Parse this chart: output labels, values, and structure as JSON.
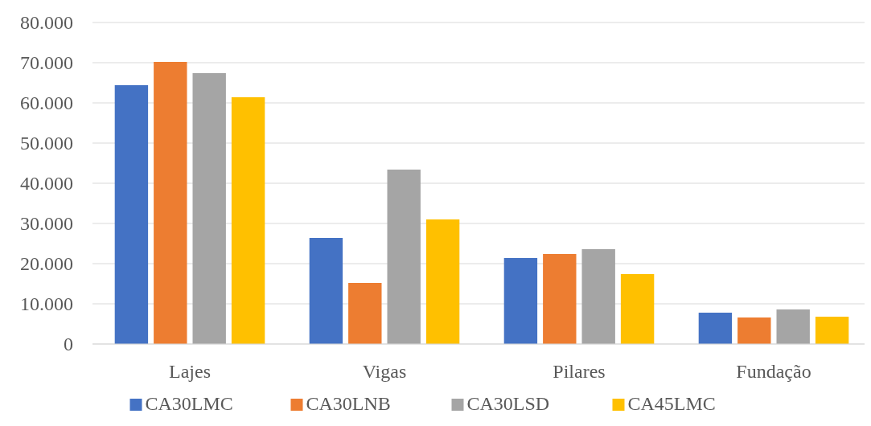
{
  "chart_data": {
    "type": "bar",
    "categories": [
      "Lajes",
      "Vigas",
      "Pilares",
      "Fundação"
    ],
    "series": [
      {
        "name": "CA30LMC",
        "color": "#4472c4",
        "values": [
          64400,
          26400,
          21400,
          7800
        ]
      },
      {
        "name": "CA30LNB",
        "color": "#ed7d31",
        "values": [
          70200,
          15200,
          22400,
          6600
        ]
      },
      {
        "name": "CA30LSD",
        "color": "#a5a5a5",
        "values": [
          67400,
          43400,
          23600,
          8600
        ]
      },
      {
        "name": "CA45LMC",
        "color": "#ffc000",
        "values": [
          61400,
          31000,
          17400,
          6800
        ]
      }
    ],
    "ylim": [
      0,
      80000
    ],
    "yticks": [
      0,
      {
        "value": 10000,
        "label": "10.000"
      },
      {
        "value": 20000,
        "label": "20.000"
      },
      {
        "value": 30000,
        "label": "30.000"
      },
      {
        "value": 40000,
        "label": "40.000"
      },
      {
        "value": 50000,
        "label": "50.000"
      },
      {
        "value": 60000,
        "label": "60.000"
      },
      {
        "value": 70000,
        "label": "70.000"
      },
      {
        "value": 80000,
        "label": "80.000"
      }
    ],
    "grid": "y",
    "legend": "bottom"
  }
}
